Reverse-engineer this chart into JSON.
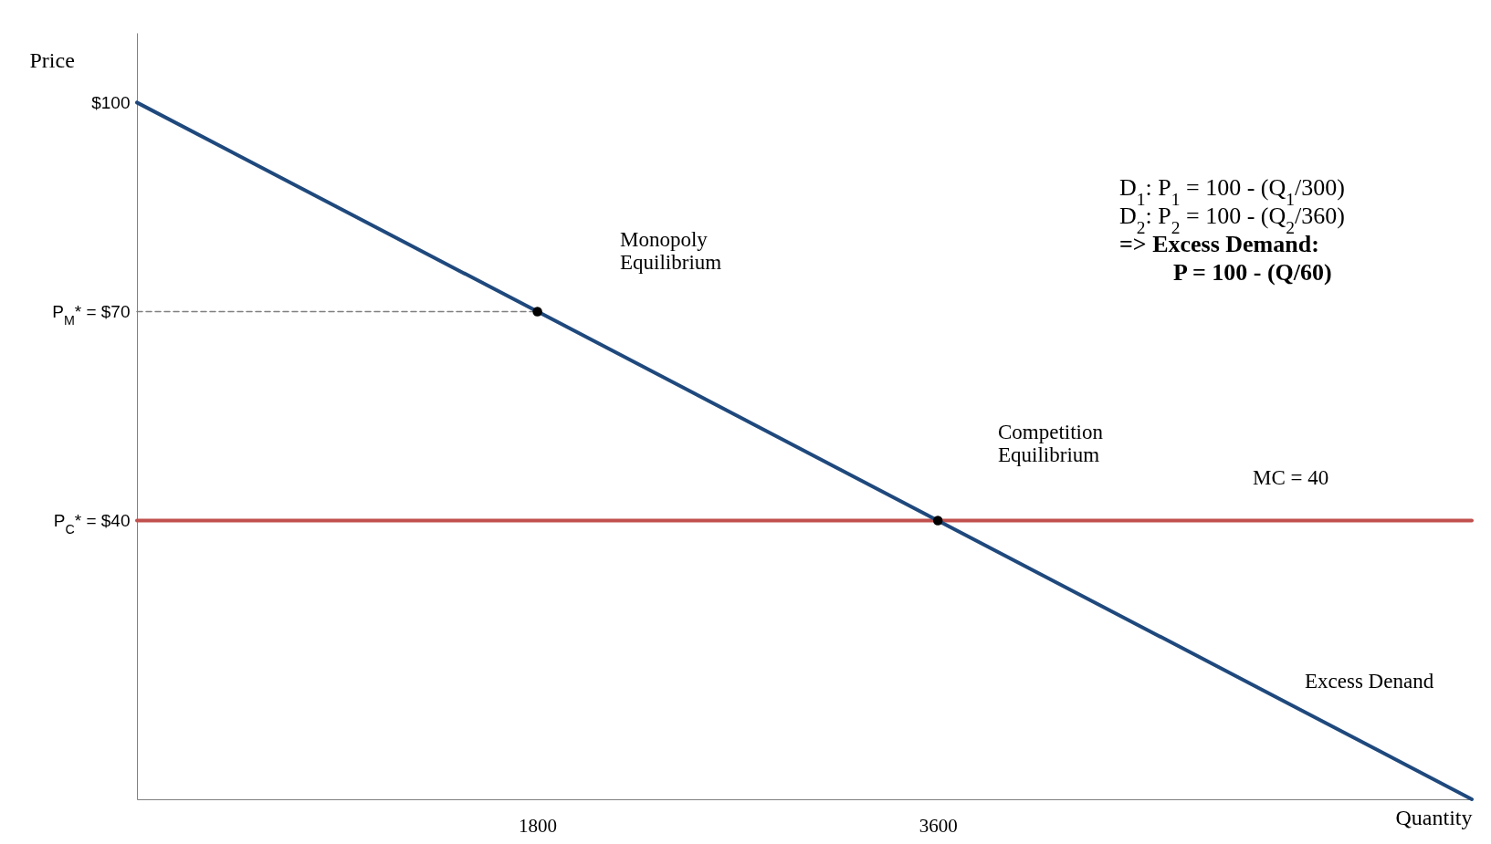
{
  "chart_data": {
    "type": "line",
    "xlabel": "Quantity",
    "ylabel": "Price",
    "xlim": [
      0,
      6000
    ],
    "ylim": [
      0,
      110
    ],
    "xticks": [
      {
        "value": 1800,
        "label": "1800"
      },
      {
        "value": 3600,
        "label": "3600"
      }
    ],
    "yticks": [
      {
        "value": 100,
        "label": "$100"
      },
      {
        "value": 70,
        "label": "P$_{M}$* = $70"
      },
      {
        "value": 40,
        "label": "P$_{C}$* = $40"
      }
    ],
    "series": [
      {
        "color": "#808080",
        "line_style": "dashed",
        "x": [
          0,
          1800
        ],
        "values": [
          70,
          70
        ]
      },
      {
        "color": "#c0504d",
        "x": [
          0,
          6000
        ],
        "values": [
          40,
          40
        ]
      },
      {
        "color": "#1f497d",
        "x": [
          0,
          6000
        ],
        "values": [
          100,
          0
        ]
      },
      {
        "type": "scatter",
        "color": "#000000",
        "marker": "circle",
        "x": [
          1800,
          3600
        ],
        "values": [
          70,
          40
        ]
      }
    ],
    "annotations": [
      "Monopoly\nEquilibrium",
      "Competition\nEquilibrium",
      "MC = 40",
      "Excess Denand",
      "D$_{1}$: P$_{1}$ = 100 - (Q$_{1}$/300)",
      "D$_{2}$: P$_{2}$ = 100 - (Q$_{2}$/360)",
      "=> Excess Demand:",
      "P = 100 - (Q/60)"
    ]
  }
}
